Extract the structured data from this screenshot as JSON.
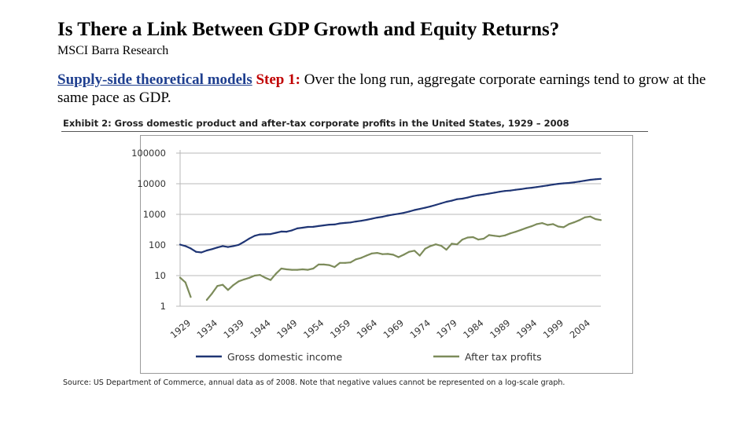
{
  "slide": {
    "title": "Is There a Link Between GDP Growth and Equity Returns?",
    "subtitle": "MSCI Barra Research",
    "link_text": "Supply-side theoretical models",
    "step_label": "Step 1:",
    "body_text": " Over the long run, aggregate corporate earnings tend to grow at the same pace as GDP."
  },
  "chart_data": {
    "type": "line",
    "title": "Exhibit 2: Gross domestic product and after-tax corporate profits in the United States, 1929 – 2008",
    "source": "Source: US Department of Commerce, annual data as of 2008. Note that negative values cannot be represented on a log-scale graph.",
    "yscale": "log",
    "ylim": [
      1,
      100000
    ],
    "xlim": [
      1929,
      2008
    ],
    "y_ticks": [
      1,
      10,
      100,
      1000,
      10000,
      100000
    ],
    "y_tick_labels": [
      "1",
      "10",
      "100",
      "1000",
      "10000",
      "100000"
    ],
    "x_ticks": [
      1929,
      1934,
      1939,
      1944,
      1949,
      1954,
      1959,
      1964,
      1969,
      1974,
      1979,
      1984,
      1989,
      1994,
      1999,
      2004
    ],
    "x_tick_labels": [
      "1929",
      "1934",
      "1939",
      "1944",
      "1949",
      "1954",
      "1959",
      "1964",
      "1969",
      "1974",
      "1979",
      "1984",
      "1989",
      "1994",
      "1999",
      "2004"
    ],
    "grid": "horizontal",
    "legend_position": "bottom",
    "series": [
      {
        "name": "Gross domestic income",
        "color": "#1f3574",
        "x": [
          1929,
          1930,
          1931,
          1932,
          1933,
          1934,
          1935,
          1936,
          1937,
          1938,
          1939,
          1940,
          1941,
          1942,
          1943,
          1944,
          1945,
          1946,
          1947,
          1948,
          1949,
          1950,
          1951,
          1952,
          1953,
          1954,
          1955,
          1956,
          1957,
          1958,
          1959,
          1960,
          1961,
          1962,
          1963,
          1964,
          1965,
          1966,
          1967,
          1968,
          1969,
          1970,
          1971,
          1972,
          1973,
          1974,
          1975,
          1976,
          1977,
          1978,
          1979,
          1980,
          1981,
          1982,
          1983,
          1984,
          1985,
          1986,
          1987,
          1988,
          1989,
          1990,
          1991,
          1992,
          1993,
          1994,
          1995,
          1996,
          1997,
          1998,
          1999,
          2000,
          2001,
          2002,
          2003,
          2004,
          2005,
          2006,
          2007,
          2008
        ],
        "values": [
          103,
          92,
          77,
          60,
          57,
          66,
          73,
          83,
          92,
          86,
          92,
          101,
          127,
          162,
          199,
          220,
          223,
          227,
          249,
          274,
          272,
          300,
          347,
          367,
          389,
          391,
          415,
          437,
          461,
          467,
          507,
          526,
          545,
          586,
          618,
          663,
          719,
          787,
          832,
          910,
          985,
          1040,
          1120,
          1240,
          1380,
          1500,
          1640,
          1820,
          2030,
          2290,
          2570,
          2790,
          3130,
          3250,
          3530,
          3930,
          4220,
          4460,
          4740,
          5100,
          5480,
          5800,
          5990,
          6340,
          6670,
          7080,
          7400,
          7810,
          8290,
          8790,
          9350,
          9950,
          10300,
          10600,
          11100,
          11800,
          12600,
          13400,
          14000,
          14400
        ]
      },
      {
        "name": "After tax profits",
        "color": "#7c8b5a",
        "x": [
          1929,
          1930,
          1931,
          1932,
          1933,
          1934,
          1935,
          1936,
          1937,
          1938,
          1939,
          1940,
          1941,
          1942,
          1943,
          1944,
          1945,
          1946,
          1947,
          1948,
          1949,
          1950,
          1951,
          1952,
          1953,
          1954,
          1955,
          1956,
          1957,
          1958,
          1959,
          1960,
          1961,
          1962,
          1963,
          1964,
          1965,
          1966,
          1967,
          1968,
          1969,
          1970,
          1971,
          1972,
          1973,
          1974,
          1975,
          1976,
          1977,
          1978,
          1979,
          1980,
          1981,
          1982,
          1983,
          1984,
          1985,
          1986,
          1987,
          1988,
          1989,
          1990,
          1991,
          1992,
          1993,
          1994,
          1995,
          1996,
          1997,
          1998,
          1999,
          2000,
          2001,
          2002,
          2003,
          2004,
          2005,
          2006,
          2007,
          2008
        ],
        "values": [
          8.6,
          6.0,
          2.0,
          null,
          null,
          1.6,
          2.6,
          4.6,
          5.0,
          3.4,
          4.9,
          6.5,
          7.5,
          8.5,
          10.0,
          10.5,
          8.5,
          7.2,
          11.5,
          17.0,
          16.0,
          15.5,
          15.5,
          16.0,
          15.5,
          17.0,
          23.0,
          23.0,
          22.0,
          19.0,
          26.0,
          26.0,
          27.0,
          34.0,
          38.0,
          45.0,
          53.0,
          55.0,
          50.0,
          51.0,
          48.0,
          40.0,
          48.0,
          60.0,
          65.0,
          45.0,
          75.0,
          92.0,
          105.0,
          95.0,
          70.0,
          110.0,
          105.0,
          150.0,
          175.0,
          180.0,
          150.0,
          160.0,
          210.0,
          200.0,
          190.0,
          205.0,
          240.0,
          270.0,
          310.0,
          360.0,
          410.0,
          480.0,
          520.0,
          450.0,
          480.0,
          400.0,
          380.0,
          480.0,
          550.0,
          650.0,
          800.0,
          850.0,
          700.0,
          650.0
        ]
      }
    ]
  }
}
